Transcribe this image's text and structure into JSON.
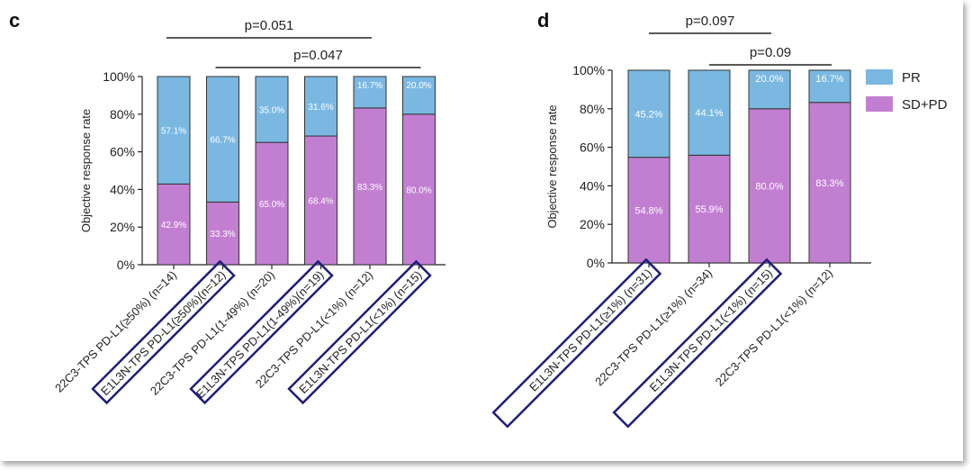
{
  "legend": {
    "items": [
      {
        "label": "PR",
        "color": "#7ab8e2"
      },
      {
        "label": "SD+PD",
        "color": "#c27fd2"
      }
    ]
  },
  "colors": {
    "pr": "#7ab8e2",
    "sdpd": "#c27fd2",
    "highlight_box": "#1f1d7a"
  },
  "chart_data": [
    {
      "panel": "c",
      "type": "bar",
      "stacked": true,
      "ylabel": "Objective response rate",
      "ylim": [
        0,
        100
      ],
      "yticks": [
        "0%",
        "20%",
        "40%",
        "60%",
        "80%",
        "100%"
      ],
      "categories": [
        {
          "label": "22C3-TPS PD-L1(≥50%) (n=14)",
          "boxed": false
        },
        {
          "label": "E1L3N-TPS PD-L1(≥50%)(n=12)",
          "boxed": true
        },
        {
          "label": "22C3-TPS PD-L1(1-49%) (n=20)",
          "boxed": false
        },
        {
          "label": "E1L3N-TPS PD-L1(1-49%)(n=19)",
          "boxed": true
        },
        {
          "label": "22C3-TPS PD-L1(<1%) (n=12)",
          "boxed": false
        },
        {
          "label": "E1L3N-TPS PD-L1(<1%) (n=15)",
          "boxed": true
        }
      ],
      "series": [
        {
          "name": "SD+PD",
          "values": [
            42.9,
            33.3,
            65.0,
            68.4,
            83.3,
            80.0
          ],
          "labels": [
            "42.9%",
            "33.3%",
            "65.0%",
            "68.4%",
            "83.3%",
            "80.0%"
          ]
        },
        {
          "name": "PR",
          "values": [
            57.1,
            66.7,
            35.0,
            31.6,
            16.7,
            20.0
          ],
          "labels": [
            "57.1%",
            "66.7%",
            "35.0%",
            "31.6%",
            "16.7%",
            "20.0%"
          ]
        }
      ],
      "comparisons": [
        {
          "from": 0,
          "to": 4,
          "label": "p=0.051"
        },
        {
          "from": 1,
          "to": 5,
          "label": "p=0.047"
        }
      ]
    },
    {
      "panel": "d",
      "type": "bar",
      "stacked": true,
      "ylabel": "Objective response rate",
      "ylim": [
        0,
        100
      ],
      "yticks": [
        "0%",
        "20%",
        "40%",
        "60%",
        "80%",
        "100%"
      ],
      "categories": [
        {
          "label": "E1L3N-TPS PD-L1(≥1%) (n=31)",
          "boxed": true
        },
        {
          "label": "22C3-TPS PD-L1(≥1%) (n=34)",
          "boxed": false
        },
        {
          "label": "E1L3N-TPS PD-L1(<1%) (n=15)",
          "boxed": true
        },
        {
          "label": "22C3-TPS PD-L1(<1%) (n=12)",
          "boxed": false
        }
      ],
      "series": [
        {
          "name": "SD+PD",
          "values": [
            54.8,
            55.9,
            80.0,
            83.3
          ],
          "labels": [
            "54.8%",
            "55.9%",
            "80.0%",
            "83.3%"
          ]
        },
        {
          "name": "PR",
          "values": [
            45.2,
            44.1,
            20.0,
            16.7
          ],
          "labels": [
            "45.2%",
            "44.1%",
            "20.0%",
            "16.7%"
          ]
        }
      ],
      "comparisons": [
        {
          "from": 0,
          "to": 2,
          "label": "p=0.097"
        },
        {
          "from": 1,
          "to": 3,
          "label": "p=0.09"
        }
      ]
    }
  ]
}
